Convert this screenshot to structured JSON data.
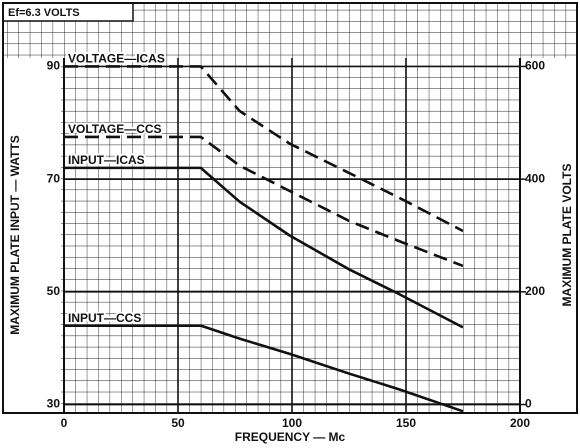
{
  "chart_data": {
    "type": "line",
    "note": "Ef=6.3 VOLTS",
    "x_label": "FREQUENCY — Mc",
    "y_label": "MAXIMUM PLATE INPUT — WATTS",
    "y2_label": "MAXIMUM PLATE VOLTS",
    "x": [
      0,
      60,
      77,
      99,
      125,
      147,
      175
    ],
    "series": [
      {
        "name": "VOLTAGE—ICAS",
        "color": "#111111",
        "dashed": true,
        "axis": "y2",
        "values": [
          600,
          600,
          521,
          463,
          411,
          367,
          308
        ]
      },
      {
        "name": "VOLTAGE—CCS",
        "color": "#111111",
        "dashed": true,
        "axis": "y2",
        "values": [
          475,
          475,
          424,
          379,
          326,
          290,
          246
        ]
      },
      {
        "name": "INPUT—ICAS",
        "color": "#111111",
        "dashed": false,
        "values": [
          72,
          72,
          66,
          60,
          54,
          49.6,
          43.7
        ]
      },
      {
        "name": "INPUT—CCS",
        "color": "#111111",
        "dashed": false,
        "values": [
          44,
          44,
          41.7,
          39,
          35.5,
          32.7,
          28.8
        ]
      }
    ],
    "xlim": [
      0,
      200
    ],
    "xticks": [
      0,
      50,
      100,
      150,
      200
    ],
    "ylim": [
      28.5,
      91.5
    ],
    "yticks": [
      30,
      50,
      70,
      90
    ],
    "y2lim": [
      -15,
      615
    ],
    "y2ticks": [
      0,
      200,
      400,
      600
    ],
    "grid": true
  }
}
